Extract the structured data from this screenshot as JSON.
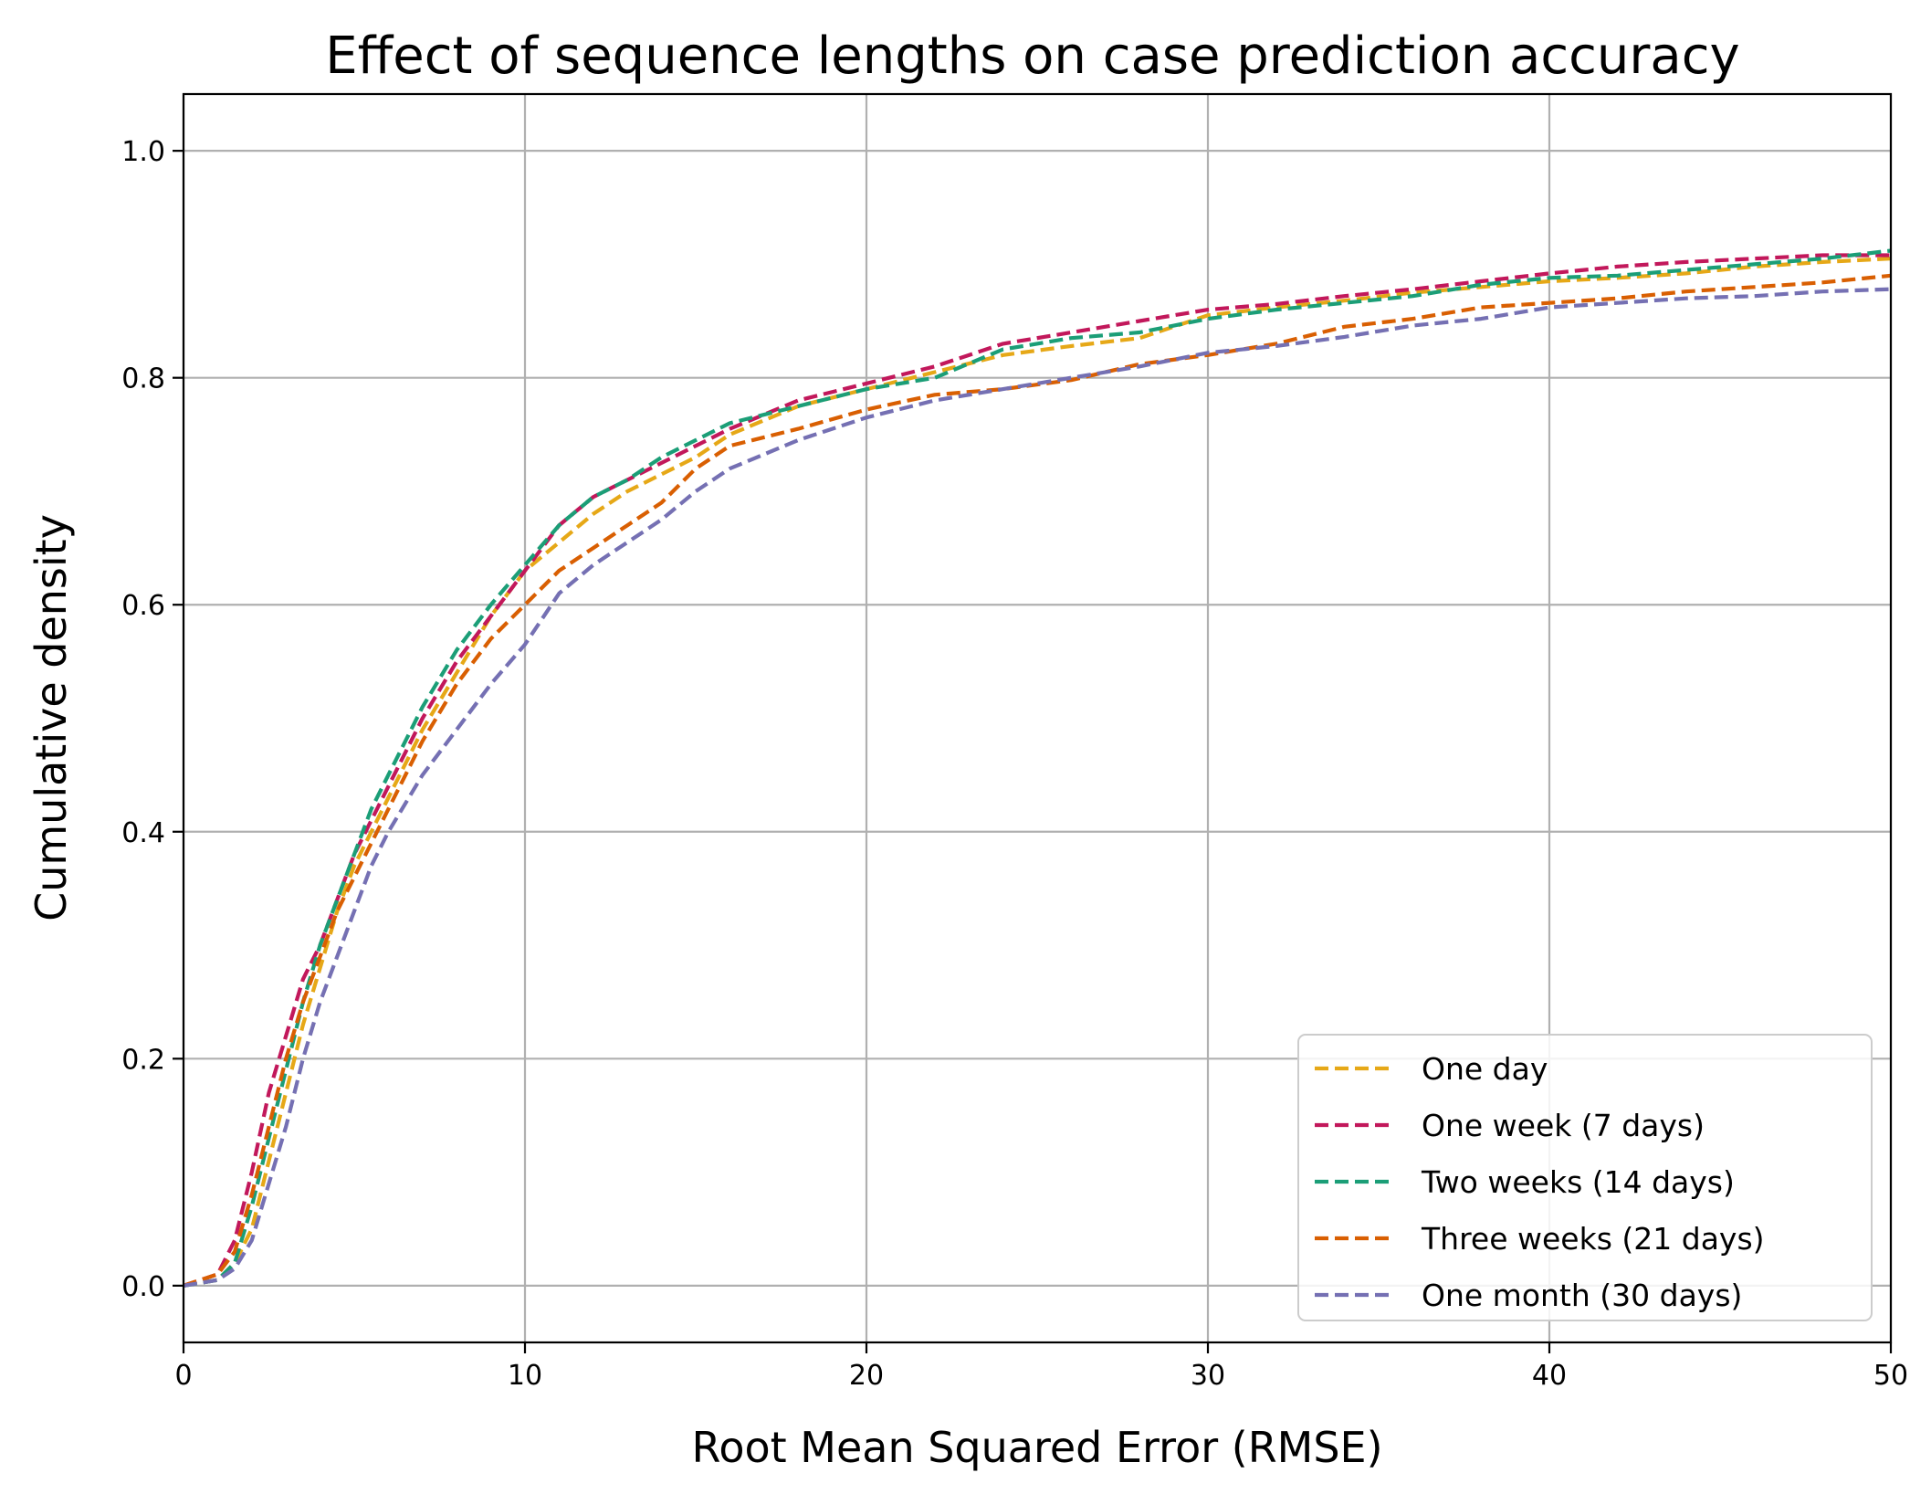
{
  "chart_data": {
    "type": "line",
    "title": "Effect of sequence lengths on case prediction accuracy",
    "xlabel": "Root Mean Squared Error (RMSE)",
    "ylabel": "Cumulative density",
    "xlim": [
      0,
      50
    ],
    "ylim": [
      -0.05,
      1.05
    ],
    "xticks": [
      0,
      10,
      20,
      30,
      40,
      50
    ],
    "xtick_labels": [
      "0",
      "10",
      "20",
      "30",
      "40",
      "50"
    ],
    "yticks": [
      0.0,
      0.2,
      0.4,
      0.6,
      0.8,
      1.0
    ],
    "ytick_labels": [
      "0.0",
      "0.2",
      "0.4",
      "0.6",
      "0.8",
      "1.0"
    ],
    "grid": true,
    "legend_position": "bottom-right",
    "series": [
      {
        "name": "One day",
        "color": "#e6a817",
        "x": [
          0,
          1,
          1.5,
          2,
          2.5,
          3,
          3.5,
          4,
          4.5,
          5,
          5.5,
          6,
          7,
          8,
          9,
          10,
          11,
          12,
          13,
          14,
          15,
          16,
          18,
          20,
          22,
          24,
          26,
          28,
          30,
          32,
          34,
          36,
          38,
          40,
          42,
          44,
          46,
          48,
          50
        ],
        "y": [
          0.0,
          0.005,
          0.02,
          0.05,
          0.11,
          0.17,
          0.23,
          0.28,
          0.33,
          0.37,
          0.4,
          0.43,
          0.49,
          0.54,
          0.59,
          0.63,
          0.655,
          0.68,
          0.7,
          0.715,
          0.73,
          0.75,
          0.775,
          0.79,
          0.805,
          0.82,
          0.828,
          0.835,
          0.855,
          0.862,
          0.868,
          0.875,
          0.88,
          0.885,
          0.888,
          0.892,
          0.898,
          0.902,
          0.905
        ]
      },
      {
        "name": "One week (7 days)",
        "color": "#c2185b",
        "x": [
          0,
          1,
          1.5,
          2,
          2.5,
          3,
          3.5,
          4,
          4.5,
          5,
          5.5,
          6,
          7,
          8,
          9,
          10,
          11,
          12,
          13,
          14,
          15,
          16,
          18,
          20,
          22,
          24,
          26,
          28,
          30,
          32,
          34,
          36,
          38,
          40,
          42,
          44,
          46,
          48,
          50
        ],
        "y": [
          0.0,
          0.01,
          0.04,
          0.1,
          0.17,
          0.22,
          0.27,
          0.3,
          0.34,
          0.38,
          0.41,
          0.44,
          0.5,
          0.55,
          0.59,
          0.63,
          0.67,
          0.695,
          0.71,
          0.725,
          0.74,
          0.755,
          0.78,
          0.795,
          0.81,
          0.83,
          0.84,
          0.85,
          0.86,
          0.865,
          0.872,
          0.878,
          0.885,
          0.892,
          0.898,
          0.902,
          0.905,
          0.908,
          0.908
        ]
      },
      {
        "name": "Two weeks (14 days)",
        "color": "#1b9e77",
        "x": [
          0,
          1,
          1.5,
          2,
          2.5,
          3,
          3.5,
          4,
          4.5,
          5,
          5.5,
          6,
          7,
          8,
          9,
          10,
          11,
          12,
          13,
          14,
          15,
          16,
          18,
          20,
          22,
          24,
          26,
          28,
          30,
          32,
          34,
          36,
          38,
          40,
          42,
          44,
          46,
          48,
          50
        ],
        "y": [
          0.0,
          0.005,
          0.02,
          0.07,
          0.13,
          0.19,
          0.25,
          0.3,
          0.34,
          0.38,
          0.42,
          0.45,
          0.51,
          0.56,
          0.6,
          0.635,
          0.67,
          0.695,
          0.71,
          0.73,
          0.745,
          0.76,
          0.775,
          0.79,
          0.8,
          0.825,
          0.835,
          0.84,
          0.852,
          0.86,
          0.866,
          0.872,
          0.882,
          0.888,
          0.89,
          0.895,
          0.9,
          0.905,
          0.912
        ]
      },
      {
        "name": "Three weeks (21 days)",
        "color": "#d95f02",
        "x": [
          0,
          1,
          1.5,
          2,
          2.5,
          3,
          3.5,
          4,
          4.5,
          5,
          5.5,
          6,
          7,
          8,
          9,
          10,
          11,
          12,
          13,
          14,
          15,
          16,
          18,
          20,
          22,
          24,
          26,
          28,
          30,
          32,
          34,
          36,
          38,
          40,
          42,
          44,
          46,
          48,
          50
        ],
        "y": [
          0.0,
          0.01,
          0.03,
          0.08,
          0.14,
          0.2,
          0.25,
          0.29,
          0.33,
          0.36,
          0.39,
          0.42,
          0.48,
          0.53,
          0.57,
          0.6,
          0.63,
          0.65,
          0.67,
          0.69,
          0.72,
          0.74,
          0.755,
          0.772,
          0.785,
          0.79,
          0.798,
          0.812,
          0.82,
          0.83,
          0.845,
          0.852,
          0.862,
          0.866,
          0.87,
          0.876,
          0.88,
          0.884,
          0.89
        ]
      },
      {
        "name": "One month (30 days)",
        "color": "#7570b3",
        "x": [
          0,
          1,
          1.5,
          2,
          2.5,
          3,
          3.5,
          4,
          4.5,
          5,
          5.5,
          6,
          7,
          8,
          9,
          10,
          11,
          12,
          13,
          14,
          15,
          16,
          18,
          20,
          22,
          24,
          26,
          28,
          30,
          32,
          34,
          36,
          38,
          40,
          42,
          44,
          46,
          48,
          50
        ],
        "y": [
          0.0,
          0.005,
          0.015,
          0.04,
          0.09,
          0.14,
          0.2,
          0.25,
          0.29,
          0.33,
          0.37,
          0.4,
          0.45,
          0.49,
          0.53,
          0.565,
          0.61,
          0.635,
          0.655,
          0.675,
          0.7,
          0.72,
          0.745,
          0.765,
          0.78,
          0.79,
          0.8,
          0.81,
          0.822,
          0.828,
          0.836,
          0.846,
          0.852,
          0.862,
          0.866,
          0.87,
          0.872,
          0.876,
          0.878
        ]
      }
    ]
  }
}
